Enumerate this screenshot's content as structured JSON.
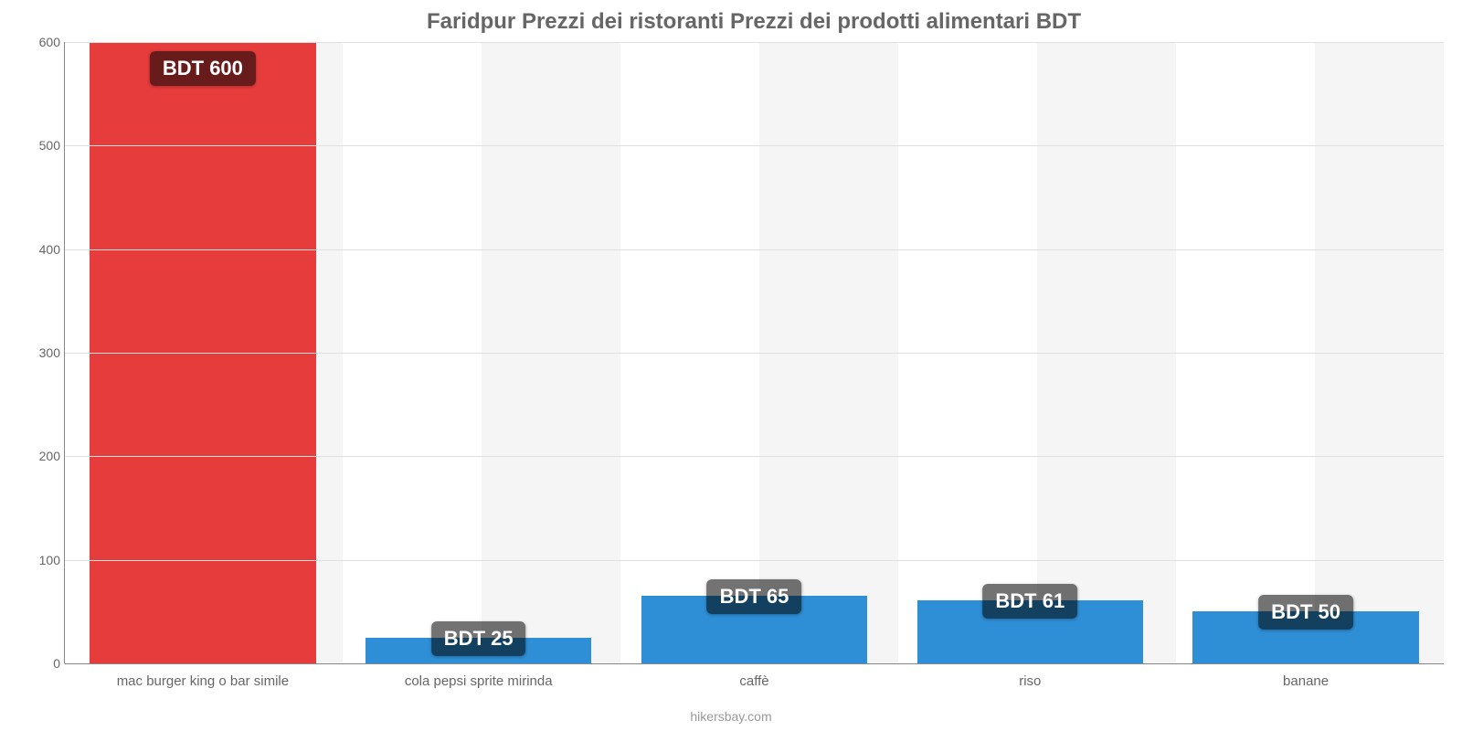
{
  "chart": {
    "type": "bar",
    "title": "Faridpur Prezzi dei ristoranti Prezzi dei prodotti alimentari BDT",
    "title_fontsize": 24,
    "title_color": "#666666",
    "background_color": "#ffffff",
    "alt_background_color": "#f5f5f5",
    "grid_color": "#e0e0e0",
    "axis_color": "#888888",
    "footer": "hikersbay.com",
    "footer_color": "#999999",
    "currency_prefix": "BDT ",
    "ylim": [
      0,
      600
    ],
    "ytick_step": 100,
    "yticks": [
      0,
      100,
      200,
      300,
      400,
      500,
      600
    ],
    "label_fontsize": 14,
    "label_color": "#666666",
    "x_label_fontsize": 15,
    "badge_fontsize": 22,
    "badge_bg": "rgba(0,0,0,0.55)",
    "badge_text_color": "#ffffff",
    "bar_width_ratio": 0.82,
    "categories": [
      "mac burger king o bar simile",
      "cola pepsi sprite mirinda",
      "caffè",
      "riso",
      "banane"
    ],
    "values": [
      600,
      25,
      65,
      61,
      50
    ],
    "value_labels": [
      "BDT 600",
      "BDT 25",
      "BDT 65",
      "BDT 61",
      "BDT 50"
    ],
    "bar_colors": [
      "#e73c3c",
      "#2e8fd6",
      "#2e8fd6",
      "#2e8fd6",
      "#2e8fd6"
    ],
    "badge_inside_threshold": 400
  }
}
